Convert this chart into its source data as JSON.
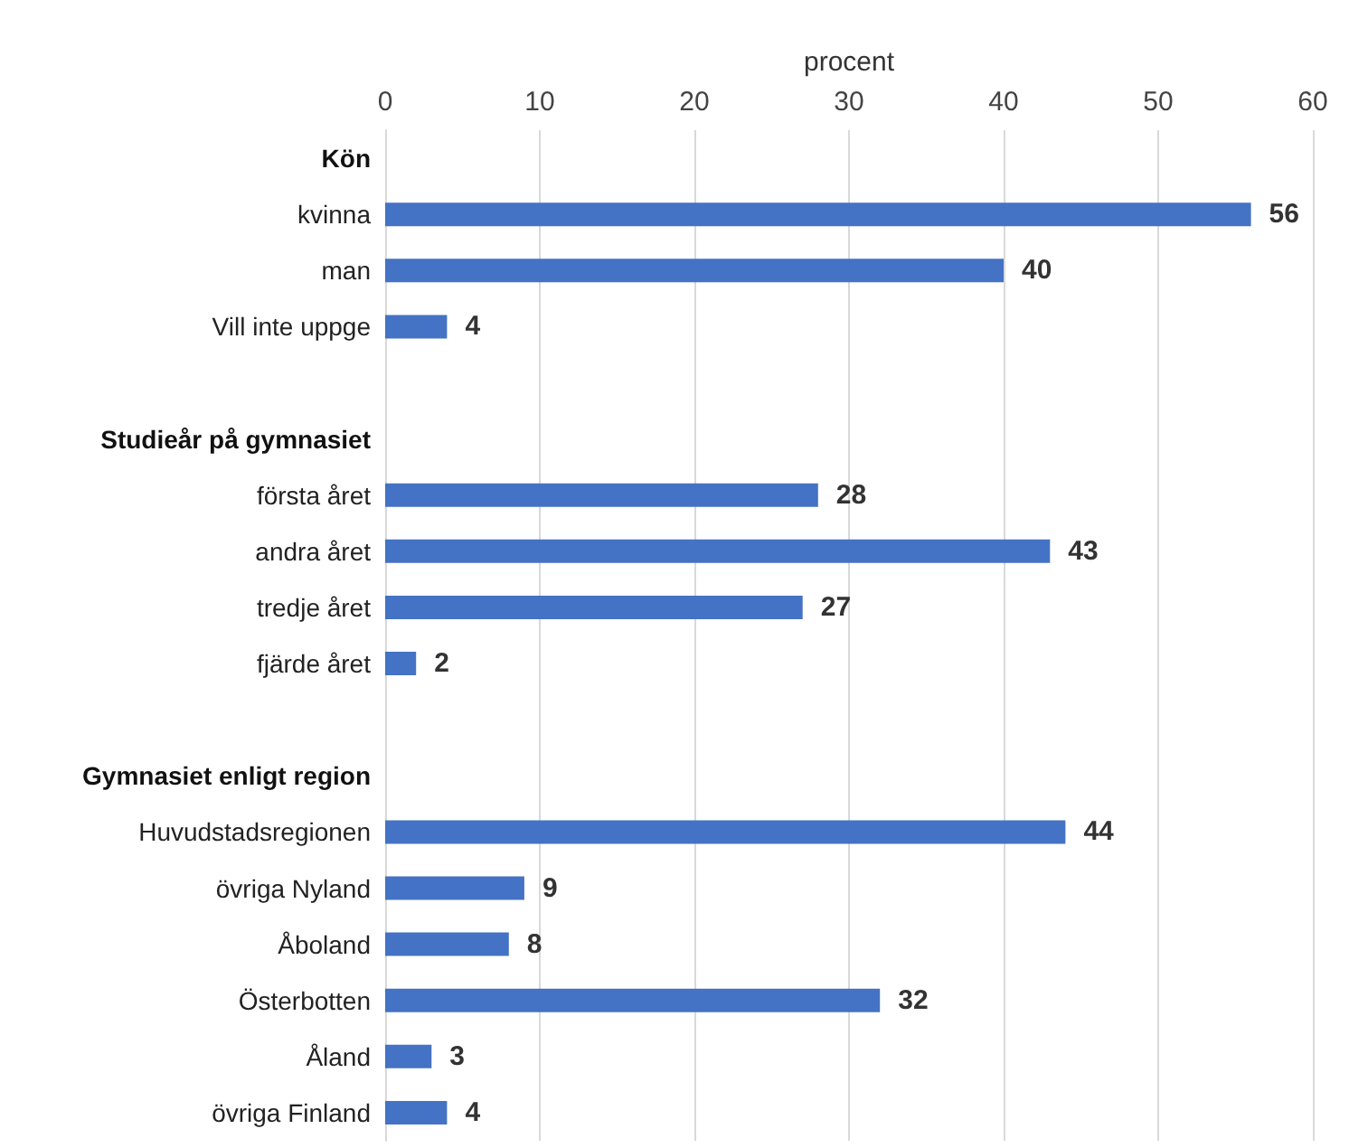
{
  "chart_data": {
    "type": "bar",
    "orientation": "horizontal",
    "xlabel": "procent",
    "categories": [
      "Kön",
      "kvinna",
      "man",
      "Vill inte uppge",
      null,
      "Studieår på gymnasiet",
      "första året",
      "andra året",
      "tredje året",
      "fjärde året",
      null,
      "Gymnasiet enligt region",
      "Huvudstadsregionen",
      "övriga Nyland",
      "Åboland",
      "Österbotten",
      "Åland",
      "övriga Finland"
    ],
    "values": [
      null,
      56,
      40,
      4,
      null,
      null,
      28,
      43,
      27,
      2,
      null,
      null,
      44,
      9,
      8,
      32,
      3,
      4
    ],
    "color": "#4472c4",
    "xlim": [
      0,
      60
    ],
    "xticks": [
      0,
      10,
      20,
      30,
      40,
      50,
      60
    ],
    "grid": "x",
    "data_labels": true
  }
}
